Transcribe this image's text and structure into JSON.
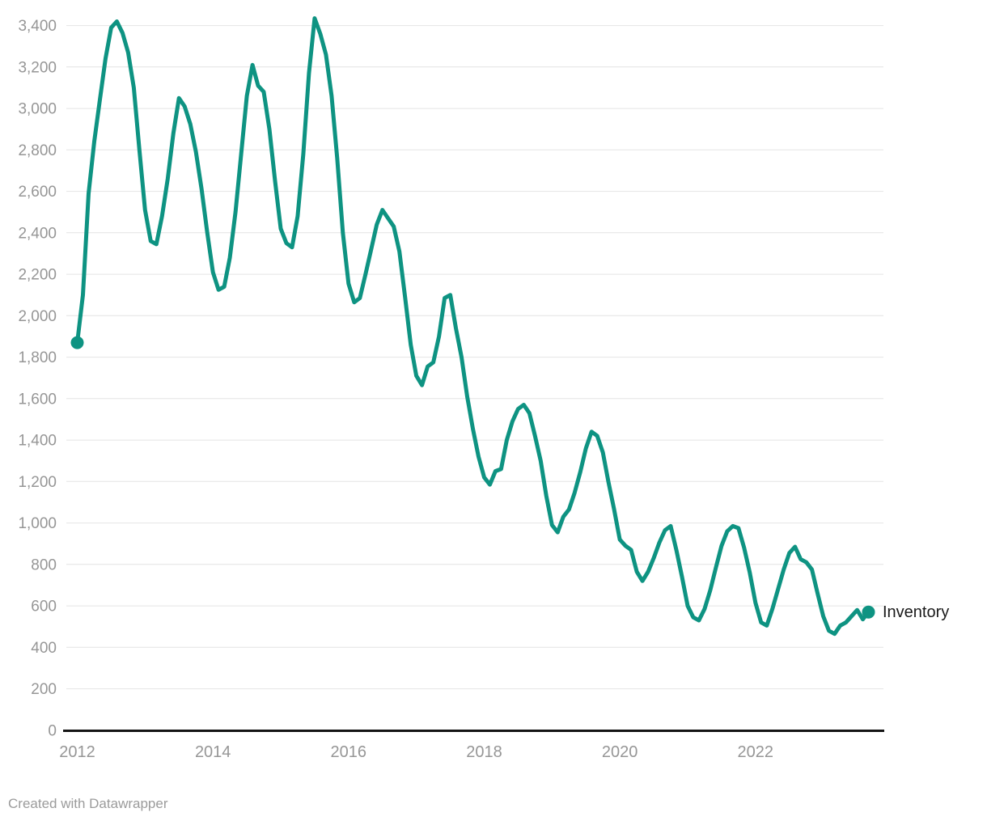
{
  "chart_data": {
    "type": "line",
    "title": "",
    "series_label": "Inventory",
    "legend_position": "line-end",
    "grid": "horizontal",
    "x_frequency": "monthly",
    "x_range": [
      "2012-01",
      "2023-09"
    ],
    "xticks": [
      "2012",
      "2014",
      "2016",
      "2018",
      "2020",
      "2022"
    ],
    "ylim": [
      0,
      3400
    ],
    "ytick_step": 200,
    "yticks": [
      "0",
      "200",
      "400",
      "600",
      "800",
      "1,000",
      "1,200",
      "1,400",
      "1,600",
      "1,800",
      "2,000",
      "2,200",
      "2,400",
      "2,600",
      "2,800",
      "3,000",
      "3,200",
      "3,400"
    ],
    "line_color": "#0e9382",
    "axis_label_color": "#969696",
    "series_label_color": "#1a1a1a",
    "gridline_color": "#e4e4e4",
    "baseline_color": "#141414",
    "series": [
      {
        "name": "Inventory",
        "points": [
          [
            "2012-01",
            1870
          ],
          [
            "2012-02",
            2100
          ],
          [
            "2012-03",
            2590
          ],
          [
            "2012-04",
            2840
          ],
          [
            "2012-05",
            3040
          ],
          [
            "2012-06",
            3240
          ],
          [
            "2012-07",
            3390
          ],
          [
            "2012-08",
            3420
          ],
          [
            "2012-09",
            3365
          ],
          [
            "2012-10",
            3270
          ],
          [
            "2012-11",
            3100
          ],
          [
            "2012-12",
            2800
          ],
          [
            "2013-01",
            2510
          ],
          [
            "2013-02",
            2360
          ],
          [
            "2013-03",
            2345
          ],
          [
            "2013-04",
            2480
          ],
          [
            "2013-05",
            2660
          ],
          [
            "2013-06",
            2880
          ],
          [
            "2013-07",
            3050
          ],
          [
            "2013-08",
            3010
          ],
          [
            "2013-09",
            2925
          ],
          [
            "2013-10",
            2790
          ],
          [
            "2013-11",
            2610
          ],
          [
            "2013-12",
            2400
          ],
          [
            "2014-01",
            2210
          ],
          [
            "2014-02",
            2125
          ],
          [
            "2014-03",
            2140
          ],
          [
            "2014-04",
            2280
          ],
          [
            "2014-05",
            2500
          ],
          [
            "2014-06",
            2780
          ],
          [
            "2014-07",
            3060
          ],
          [
            "2014-08",
            3210
          ],
          [
            "2014-09",
            3110
          ],
          [
            "2014-10",
            3080
          ],
          [
            "2014-11",
            2900
          ],
          [
            "2014-12",
            2650
          ],
          [
            "2015-01",
            2420
          ],
          [
            "2015-02",
            2350
          ],
          [
            "2015-03",
            2330
          ],
          [
            "2015-04",
            2480
          ],
          [
            "2015-05",
            2780
          ],
          [
            "2015-06",
            3170
          ],
          [
            "2015-07",
            3435
          ],
          [
            "2015-08",
            3360
          ],
          [
            "2015-09",
            3260
          ],
          [
            "2015-10",
            3060
          ],
          [
            "2015-11",
            2760
          ],
          [
            "2015-12",
            2400
          ],
          [
            "2016-01",
            2155
          ],
          [
            "2016-02",
            2065
          ],
          [
            "2016-03",
            2085
          ],
          [
            "2016-04",
            2200
          ],
          [
            "2016-05",
            2320
          ],
          [
            "2016-06",
            2440
          ],
          [
            "2016-07",
            2510
          ],
          [
            "2016-08",
            2470
          ],
          [
            "2016-09",
            2430
          ],
          [
            "2016-10",
            2310
          ],
          [
            "2016-11",
            2090
          ],
          [
            "2016-12",
            1860
          ],
          [
            "2017-01",
            1710
          ],
          [
            "2017-02",
            1665
          ],
          [
            "2017-03",
            1755
          ],
          [
            "2017-04",
            1775
          ],
          [
            "2017-05",
            1900
          ],
          [
            "2017-06",
            2085
          ],
          [
            "2017-07",
            2100
          ],
          [
            "2017-08",
            1940
          ],
          [
            "2017-09",
            1800
          ],
          [
            "2017-10",
            1610
          ],
          [
            "2017-11",
            1455
          ],
          [
            "2017-12",
            1320
          ],
          [
            "2018-01",
            1220
          ],
          [
            "2018-02",
            1185
          ],
          [
            "2018-03",
            1250
          ],
          [
            "2018-04",
            1260
          ],
          [
            "2018-05",
            1400
          ],
          [
            "2018-06",
            1490
          ],
          [
            "2018-07",
            1550
          ],
          [
            "2018-08",
            1570
          ],
          [
            "2018-09",
            1530
          ],
          [
            "2018-10",
            1420
          ],
          [
            "2018-11",
            1300
          ],
          [
            "2018-12",
            1130
          ],
          [
            "2019-01",
            990
          ],
          [
            "2019-02",
            955
          ],
          [
            "2019-03",
            1030
          ],
          [
            "2019-04",
            1065
          ],
          [
            "2019-05",
            1145
          ],
          [
            "2019-06",
            1245
          ],
          [
            "2019-07",
            1360
          ],
          [
            "2019-08",
            1440
          ],
          [
            "2019-09",
            1420
          ],
          [
            "2019-10",
            1340
          ],
          [
            "2019-11",
            1195
          ],
          [
            "2019-12",
            1065
          ],
          [
            "2020-01",
            920
          ],
          [
            "2020-02",
            890
          ],
          [
            "2020-03",
            870
          ],
          [
            "2020-04",
            765
          ],
          [
            "2020-05",
            720
          ],
          [
            "2020-06",
            765
          ],
          [
            "2020-07",
            830
          ],
          [
            "2020-08",
            905
          ],
          [
            "2020-09",
            965
          ],
          [
            "2020-10",
            985
          ],
          [
            "2020-11",
            870
          ],
          [
            "2020-12",
            740
          ],
          [
            "2021-01",
            600
          ],
          [
            "2021-02",
            545
          ],
          [
            "2021-03",
            530
          ],
          [
            "2021-04",
            585
          ],
          [
            "2021-05",
            675
          ],
          [
            "2021-06",
            785
          ],
          [
            "2021-07",
            890
          ],
          [
            "2021-08",
            960
          ],
          [
            "2021-09",
            985
          ],
          [
            "2021-10",
            975
          ],
          [
            "2021-11",
            880
          ],
          [
            "2021-12",
            760
          ],
          [
            "2022-01",
            615
          ],
          [
            "2022-02",
            520
          ],
          [
            "2022-03",
            505
          ],
          [
            "2022-04",
            585
          ],
          [
            "2022-05",
            680
          ],
          [
            "2022-06",
            775
          ],
          [
            "2022-07",
            855
          ],
          [
            "2022-08",
            885
          ],
          [
            "2022-09",
            825
          ],
          [
            "2022-10",
            810
          ],
          [
            "2022-11",
            775
          ],
          [
            "2022-12",
            660
          ],
          [
            "2023-01",
            550
          ],
          [
            "2023-02",
            480
          ],
          [
            "2023-03",
            465
          ],
          [
            "2023-04",
            505
          ],
          [
            "2023-05",
            520
          ],
          [
            "2023-06",
            550
          ],
          [
            "2023-07",
            580
          ],
          [
            "2023-08",
            535
          ],
          [
            "2023-09",
            570
          ]
        ]
      }
    ]
  },
  "footer": {
    "credit": "Created with Datawrapper"
  }
}
